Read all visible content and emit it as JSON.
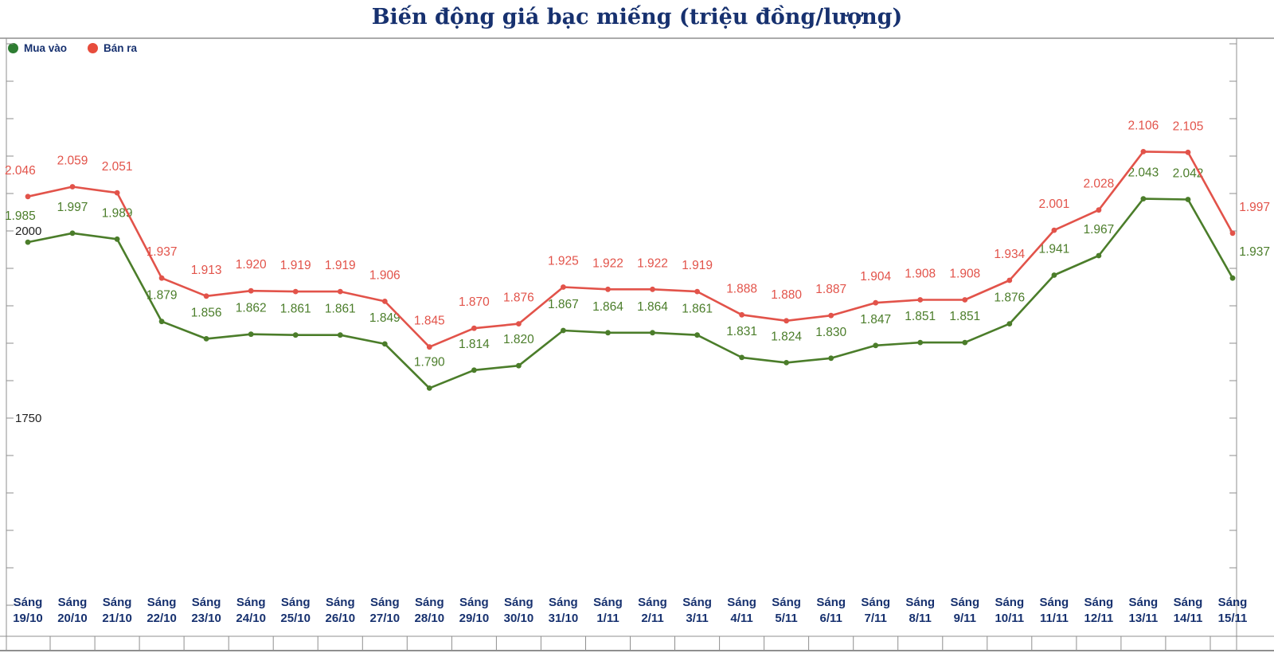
{
  "title": "Biến động giá bạc miếng (triệu đồng/lượng)",
  "legend": [
    {
      "label": "Mua vào",
      "color": "#2e7d32"
    },
    {
      "label": "Bán ra",
      "color": "#e74c3c"
    }
  ],
  "colors": {
    "title": "#17316f",
    "axis_label": "#17316f",
    "tick_text": "#222222",
    "frame": "#8f8f8f",
    "buy_line": "#4b7d2a",
    "sell_line": "#e2534a"
  },
  "y_axis": {
    "min": 1500,
    "max": 2250,
    "step": 50,
    "ticks": [
      2000,
      1750
    ]
  },
  "chart_data": {
    "type": "line",
    "title": "Biến động giá bạc miếng (triệu đồng/lượng)",
    "xlabel": "",
    "ylabel": "",
    "unit": "triệu đồng/lượng",
    "ylim": [
      1500,
      2250
    ],
    "grid": "ticks-only",
    "legend_position": "top-left",
    "x_prefix": "Sáng",
    "categories": [
      "19/10",
      "20/10",
      "21/10",
      "22/10",
      "23/10",
      "24/10",
      "25/10",
      "26/10",
      "27/10",
      "28/10",
      "29/10",
      "30/10",
      "31/10",
      "1/11",
      "2/11",
      "3/11",
      "4/11",
      "5/11",
      "6/11",
      "7/11",
      "8/11",
      "9/11",
      "10/11",
      "11/11",
      "12/11",
      "13/11",
      "14/11",
      "15/11"
    ],
    "series": [
      {
        "name": "Mua vào",
        "color": "#4b7d2a",
        "values": [
          1.985,
          1.997,
          1.989,
          1.879,
          1.856,
          1.862,
          1.861,
          1.861,
          1.849,
          1.79,
          1.814,
          1.82,
          1.867,
          1.864,
          1.864,
          1.861,
          1.831,
          1.824,
          1.83,
          1.847,
          1.851,
          1.851,
          1.876,
          1.941,
          1.967,
          2.043,
          2.042,
          1.937
        ]
      },
      {
        "name": "Bán ra",
        "color": "#e2534a",
        "values": [
          2.046,
          2.059,
          2.051,
          1.937,
          1.913,
          1.92,
          1.919,
          1.919,
          1.906,
          1.845,
          1.87,
          1.876,
          1.925,
          1.922,
          1.922,
          1.919,
          1.888,
          1.88,
          1.887,
          1.904,
          1.908,
          1.908,
          1.934,
          2.001,
          2.028,
          2.106,
          2.105,
          1.997
        ]
      }
    ]
  }
}
